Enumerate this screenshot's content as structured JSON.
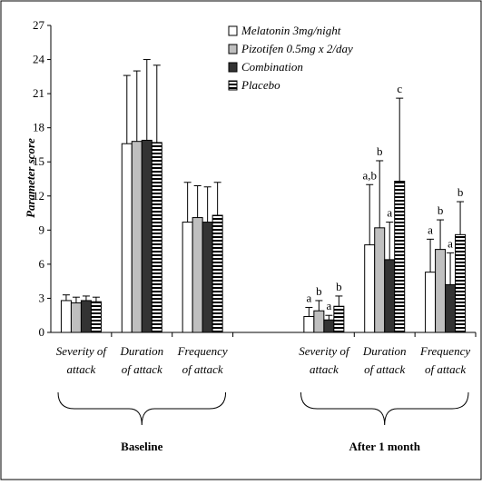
{
  "chart_data": {
    "type": "bar",
    "ylabel": "Parameter score",
    "ylim": [
      0,
      27
    ],
    "yticks": [
      "0",
      "3",
      "6",
      "9",
      "12",
      "15",
      "18",
      "21",
      "24",
      "27"
    ],
    "series": [
      {
        "name": "Melatonin 3mg/night",
        "fill": "#ffffff",
        "pattern": "none"
      },
      {
        "name": "Pizotifen 0.5mg x 2/day",
        "fill": "#bfbfbf",
        "pattern": "none"
      },
      {
        "name": "Combination",
        "fill": "#333333",
        "pattern": "none"
      },
      {
        "name": "Placebo",
        "fill": "#ffffff",
        "pattern": "horizontal-stripes"
      }
    ],
    "groups": [
      {
        "label": "Baseline",
        "categories": [
          {
            "lines": [
              "Severity of",
              "attack"
            ],
            "values": [
              2.8,
              2.6,
              2.8,
              2.7
            ],
            "errors": [
              0.5,
              0.5,
              0.4,
              0.4
            ],
            "sig": [
              "",
              "",
              "",
              ""
            ]
          },
          {
            "lines": [
              "Duration",
              "of attack"
            ],
            "values": [
              16.6,
              16.8,
              16.9,
              16.7
            ],
            "errors": [
              6.0,
              6.2,
              7.1,
              6.8
            ],
            "sig": [
              "",
              "",
              "",
              ""
            ]
          },
          {
            "lines": [
              "Frequency",
              "of attack"
            ],
            "values": [
              9.7,
              10.1,
              9.7,
              10.3
            ],
            "errors": [
              3.5,
              2.8,
              3.1,
              2.9
            ],
            "sig": [
              "",
              "",
              "",
              ""
            ]
          }
        ]
      },
      {
        "label": "After 1 month",
        "categories": [
          {
            "lines": [
              "Severity of",
              "attack"
            ],
            "values": [
              1.4,
              1.9,
              1.1,
              2.3
            ],
            "errors": [
              0.8,
              0.9,
              0.4,
              0.9
            ],
            "sig": [
              "a",
              "b",
              "a",
              "b"
            ]
          },
          {
            "lines": [
              "Duration",
              "of attack"
            ],
            "values": [
              7.7,
              9.2,
              6.4,
              13.3
            ],
            "errors": [
              5.3,
              5.9,
              3.3,
              7.3
            ],
            "sig": [
              "a,b",
              "b",
              "a",
              "c"
            ]
          },
          {
            "lines": [
              "Frequency",
              "of attack"
            ],
            "values": [
              5.3,
              7.3,
              4.2,
              8.6
            ],
            "errors": [
              2.9,
              2.6,
              2.8,
              2.9
            ],
            "sig": [
              "a",
              "b",
              "a",
              "b"
            ]
          }
        ]
      }
    ]
  }
}
